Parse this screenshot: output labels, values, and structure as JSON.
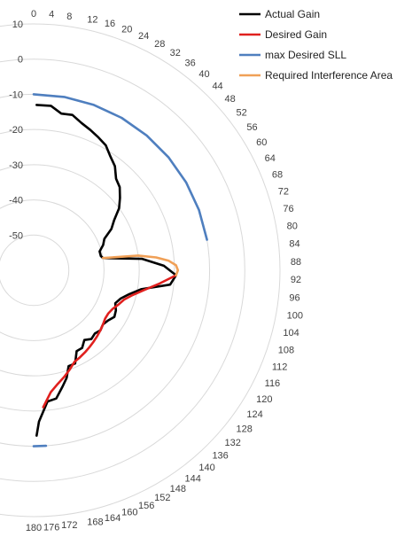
{
  "chart_data": {
    "type": "line",
    "coordinate_system": "polar",
    "angle_unit": "degrees",
    "angle_range": [
      0,
      180
    ],
    "angle_direction": "clockwise from top",
    "radial_range": [
      -60,
      10
    ],
    "radial_ticks": [
      10,
      0,
      -10,
      -20,
      -30,
      -40,
      -50
    ],
    "angle_ticks": [
      0,
      4,
      8,
      12,
      16,
      20,
      24,
      28,
      32,
      36,
      40,
      44,
      48,
      52,
      56,
      60,
      64,
      68,
      72,
      76,
      80,
      84,
      88,
      92,
      96,
      100,
      104,
      108,
      112,
      116,
      120,
      124,
      128,
      132,
      136,
      140,
      144,
      148,
      152,
      156,
      160,
      164,
      168,
      172,
      176,
      180
    ],
    "grid": true,
    "legend_position": "top-right",
    "series": [
      {
        "name": "Actual Gain",
        "color": "#000000",
        "points": [
          [
            1,
            -13
          ],
          [
            6,
            -13
          ],
          [
            10,
            -14.8
          ],
          [
            14,
            -14.5
          ],
          [
            18,
            -16
          ],
          [
            22,
            -17
          ],
          [
            26,
            -18
          ],
          [
            30,
            -19
          ],
          [
            34,
            -21
          ],
          [
            38,
            -22.5
          ],
          [
            42,
            -25
          ],
          [
            46,
            -26
          ],
          [
            50,
            -28
          ],
          [
            54,
            -30
          ],
          [
            58,
            -33
          ],
          [
            62,
            -35
          ],
          [
            66,
            -38
          ],
          [
            70,
            -39
          ],
          [
            74,
            -40.5
          ],
          [
            78,
            -40.5
          ],
          [
            80,
            -40
          ],
          [
            84,
            -29
          ],
          [
            88,
            -23
          ],
          [
            92,
            -19.5
          ],
          [
            96,
            -21
          ],
          [
            100,
            -29
          ],
          [
            104,
            -32
          ],
          [
            108,
            -34
          ],
          [
            112,
            -35
          ],
          [
            116,
            -34
          ],
          [
            120,
            -33.5
          ],
          [
            124,
            -34.5
          ],
          [
            128,
            -35
          ],
          [
            132,
            -34.5
          ],
          [
            136,
            -35
          ],
          [
            140,
            -34.5
          ],
          [
            144,
            -35.5
          ],
          [
            148,
            -34
          ],
          [
            152,
            -34
          ],
          [
            156,
            -31
          ],
          [
            160,
            -31
          ],
          [
            163,
            -28
          ],
          [
            166,
            -26
          ],
          [
            170,
            -23
          ],
          [
            174,
            -22.5
          ],
          [
            178,
            -17
          ],
          [
            179,
            -13
          ]
        ]
      },
      {
        "name": "Desired Gain",
        "color": "#e0201e",
        "points": [
          [
            92,
            -19.5
          ],
          [
            96,
            -24
          ],
          [
            100,
            -28
          ],
          [
            104,
            -31
          ],
          [
            108,
            -33
          ],
          [
            112,
            -34
          ],
          [
            116,
            -35
          ],
          [
            120,
            -35.5
          ],
          [
            124,
            -35.5
          ],
          [
            128,
            -35
          ],
          [
            132,
            -34.5
          ],
          [
            136,
            -34
          ],
          [
            140,
            -33.5
          ],
          [
            144,
            -33
          ],
          [
            148,
            -32.5
          ],
          [
            152,
            -32
          ],
          [
            156,
            -31.5
          ],
          [
            160,
            -30
          ],
          [
            164,
            -28.5
          ],
          [
            168,
            -27
          ],
          [
            172,
            -25
          ],
          [
            176,
            -21
          ]
        ]
      },
      {
        "name": "max Desired SLL",
        "color": "#4f7fbf",
        "segments": [
          [
            [
              0,
              -10
            ],
            [
              10,
              -10
            ],
            [
              20,
              -10
            ],
            [
              30,
              -10
            ],
            [
              40,
              -10
            ],
            [
              50,
              -10
            ],
            [
              60,
              -10
            ],
            [
              70,
              -10
            ],
            [
              80,
              -10
            ]
          ],
          [
            [
              176,
              -10
            ],
            [
              180,
              -10
            ]
          ]
        ]
      },
      {
        "name": "Required Interference Area",
        "color": "#f0a057",
        "points": [
          [
            80,
            -40
          ],
          [
            82,
            -30
          ],
          [
            84,
            -25
          ],
          [
            86,
            -21.5
          ],
          [
            88,
            -19.5
          ],
          [
            90,
            -19
          ],
          [
            92,
            -19.5
          ]
        ]
      }
    ]
  }
}
